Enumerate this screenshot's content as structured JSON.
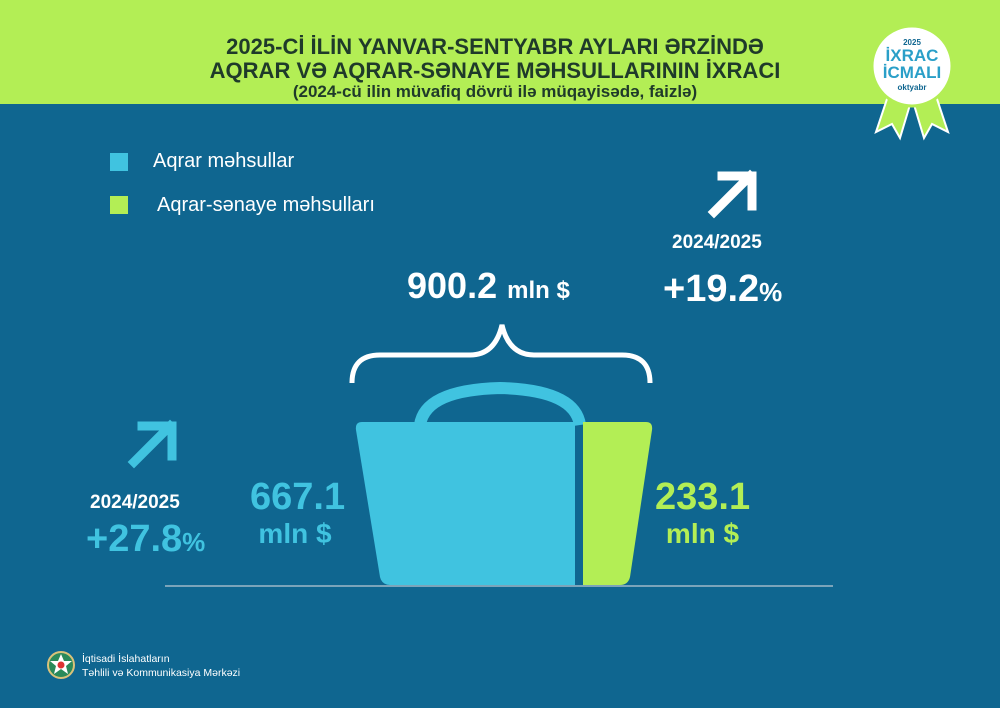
{
  "header": {
    "line1": "2025-Cİ İLİN YANVAR-SENTYABR AYLARI ƏRZİNDƏ",
    "line2": "AQRAR VƏ AQRAR-SƏNAYE MƏHSULLARININ İXRACI",
    "line3": "(2024-cü ilin müvafiq dövrü ilə müqayisədə, faizlə)"
  },
  "badge": {
    "year": "2025",
    "line1": "İXRAC",
    "line2": "İCMALI",
    "month": "oktyabr"
  },
  "legend": [
    {
      "label": "Aqrar məhsullar",
      "color": "#40c3e0"
    },
    {
      "label": "Aqrar-sənaye məhsulları",
      "color": "#b3ee55"
    }
  ],
  "total": {
    "value": "900.2",
    "unit": "mln $",
    "period": "2024/2025",
    "change": "+19.2",
    "pct": "%"
  },
  "agrarian": {
    "value": "667.1",
    "unit": "mln $",
    "period": "2024/2025",
    "change": "+27.8",
    "pct": "%"
  },
  "agro_industrial": {
    "value": "233.1",
    "unit": "mln $"
  },
  "footer": {
    "line1": "İqtisadi İslahatların",
    "line2": "Təhlili və Kommunikasiya Mərkəzi"
  }
}
